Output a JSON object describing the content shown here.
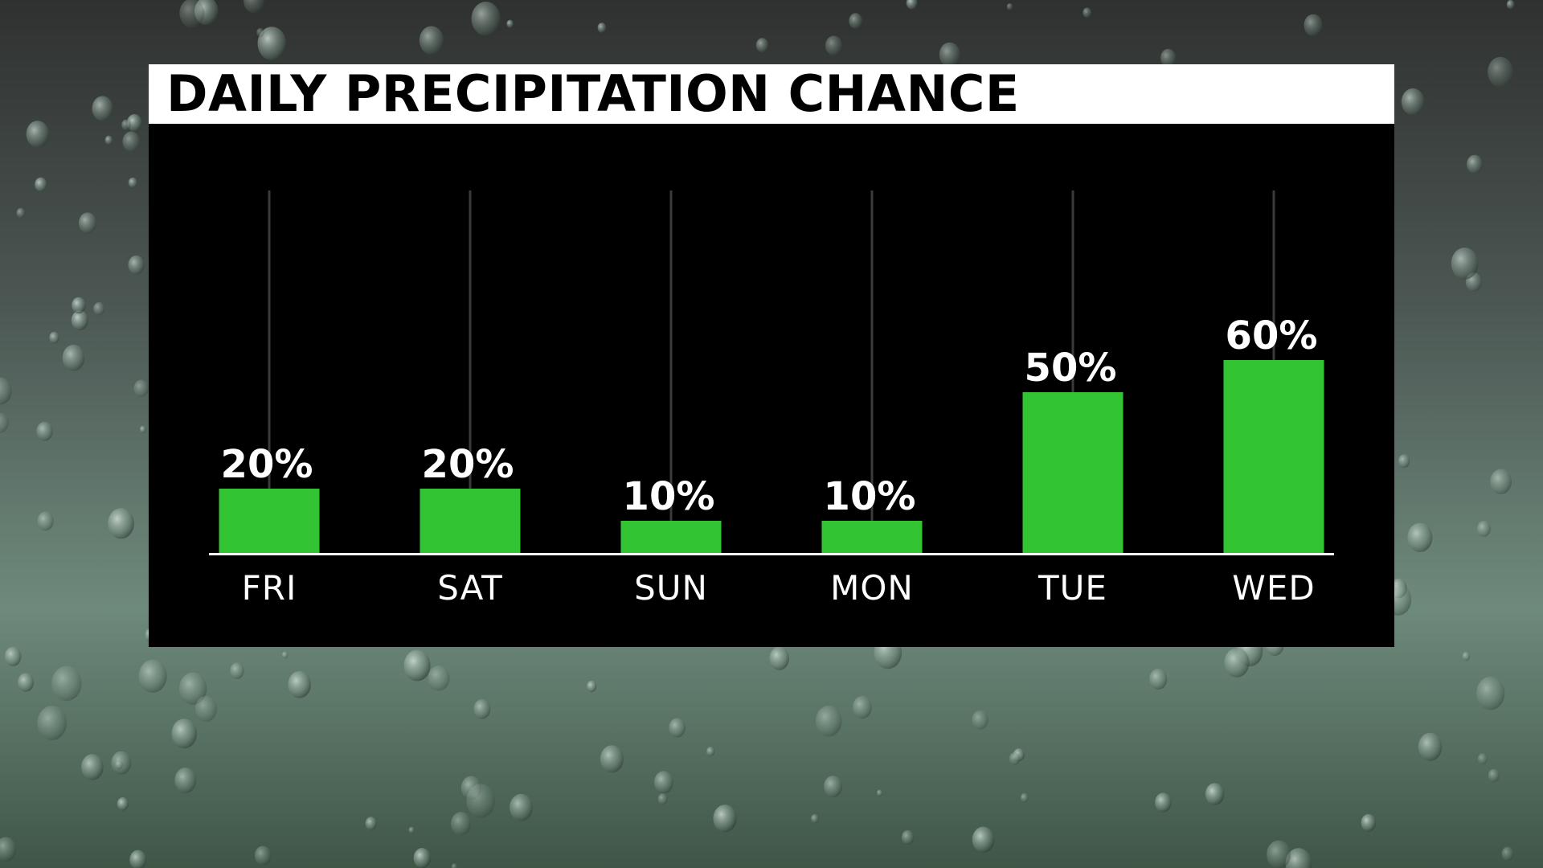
{
  "colors": {
    "bar": "#33c433",
    "panel": "#000000",
    "title_bg": "#ffffff",
    "title_text": "#000000",
    "label_text": "#ffffff",
    "gridline": "#3a3a3a",
    "baseline": "#ffffff"
  },
  "chart_data": {
    "type": "bar",
    "title": "DAILY PRECIPITATION CHANCE",
    "categories": [
      "FRI",
      "SAT",
      "SUN",
      "MON",
      "TUE",
      "WED"
    ],
    "values": [
      20,
      20,
      10,
      10,
      50,
      60
    ],
    "value_labels": [
      "20%",
      "20%",
      "10%",
      "10%",
      "50%",
      "60%"
    ],
    "unit": "%",
    "ylim": [
      0,
      100
    ],
    "grid": true,
    "legend": "none"
  }
}
